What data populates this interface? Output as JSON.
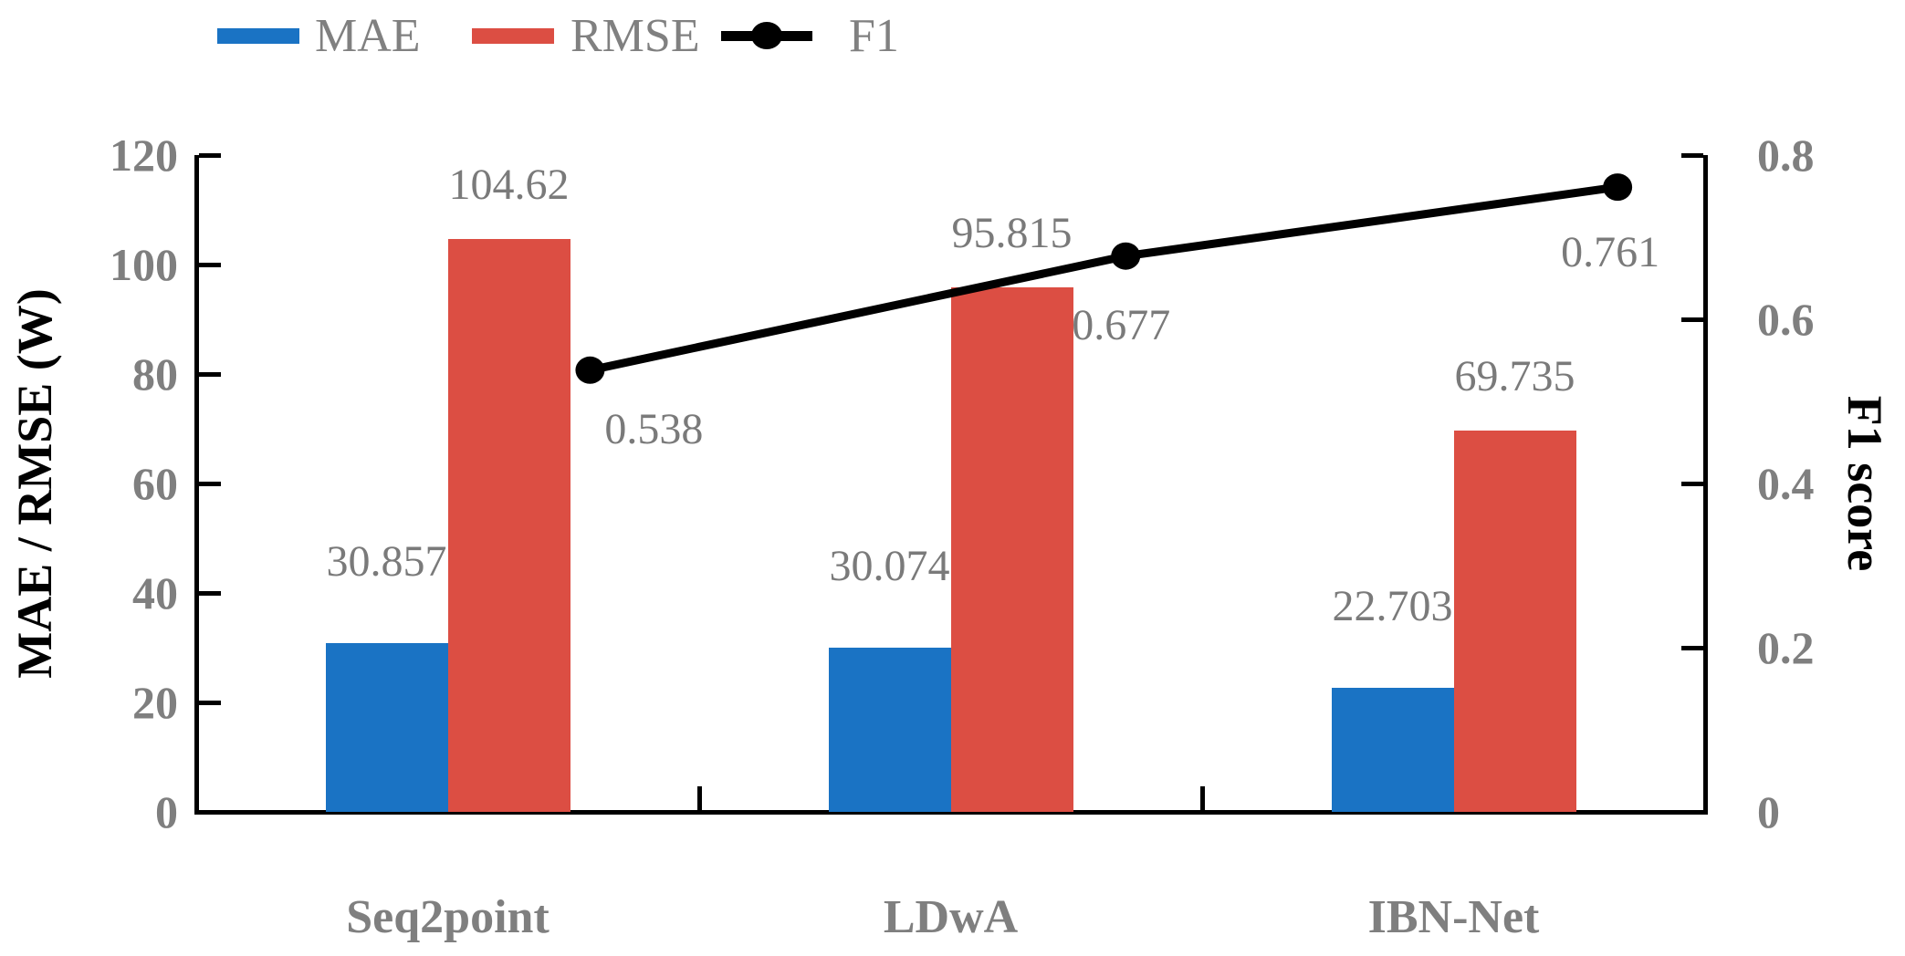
{
  "chart_data": {
    "type": "bar+line",
    "categories": [
      "Seq2point",
      "LDwA",
      "IBN-Net"
    ],
    "series": [
      {
        "name": "MAE",
        "type": "bar",
        "axis": "left",
        "color": "#1a73c4",
        "values": [
          30.857,
          30.074,
          22.703
        ],
        "labels": [
          "30.857",
          "30.074",
          "22.703"
        ]
      },
      {
        "name": "RMSE",
        "type": "bar",
        "axis": "left",
        "color": "#dc4e43",
        "values": [
          104.62,
          95.815,
          69.735
        ],
        "labels": [
          "104.62",
          "95.815",
          "69.735"
        ]
      },
      {
        "name": "F1",
        "type": "line",
        "axis": "right",
        "color": "#000000",
        "values": [
          0.538,
          0.677,
          0.761
        ],
        "labels": [
          "0.538",
          "0.677",
          "0.761"
        ]
      }
    ],
    "left_axis": {
      "label": "MAE / RMSE (W)",
      "min": 0,
      "max": 120,
      "ticks": [
        0,
        20,
        40,
        60,
        80,
        100,
        120
      ],
      "tick_labels": [
        "0",
        "20",
        "40",
        "60",
        "80",
        "100",
        "120"
      ]
    },
    "right_axis": {
      "label": "F1 score",
      "min": 0,
      "max": 0.8,
      "ticks": [
        0,
        0.2,
        0.4,
        0.6,
        0.8
      ],
      "tick_labels": [
        "0",
        "0.2",
        "0.4",
        "0.6",
        "0.8"
      ]
    },
    "legend": {
      "position": "top-left",
      "items": [
        "MAE",
        "RMSE",
        "F1"
      ]
    },
    "grid": false,
    "text_color_gray": "#7f7f7f",
    "axis_color": "#000000"
  }
}
